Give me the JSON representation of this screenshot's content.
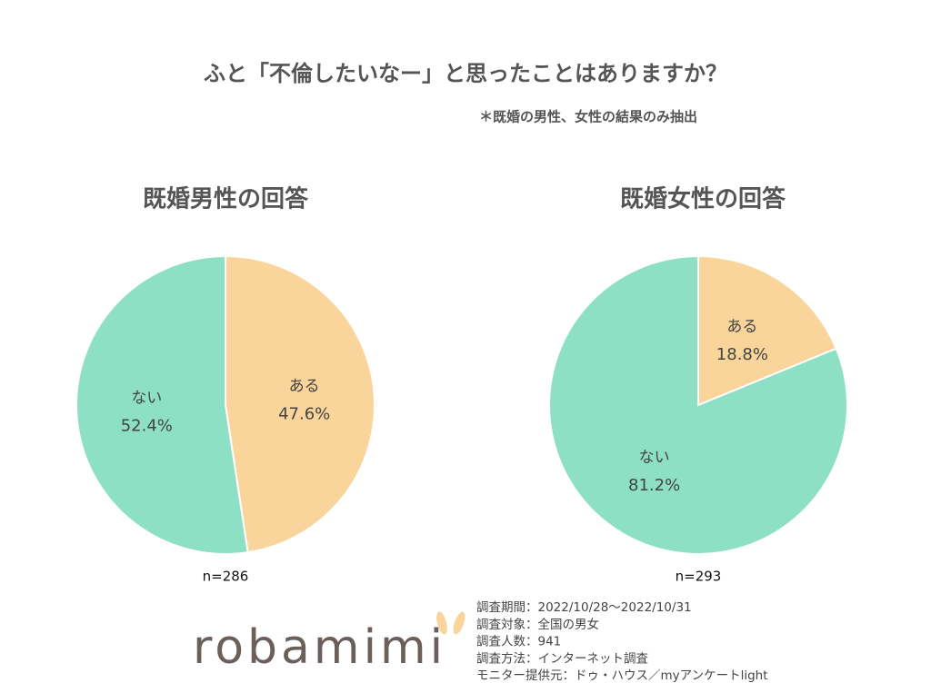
{
  "title": "ふと「不倫したいなー」と思ったことはありますか？",
  "note": "＊既婚の男性、女性の結果のみ抽出",
  "chart_data": [
    {
      "type": "pie",
      "title": "既婚男性の回答",
      "categories": [
        "ある",
        "ない"
      ],
      "values": [
        47.6,
        52.4
      ],
      "value_labels": [
        "47.6%",
        "52.4%"
      ],
      "colors": [
        "#f9d49b",
        "#8ee0c4"
      ],
      "footnote": "n=286"
    },
    {
      "type": "pie",
      "title": "既婚女性の回答",
      "categories": [
        "ある",
        "ない"
      ],
      "values": [
        18.8,
        81.2
      ],
      "value_labels": [
        "18.8%",
        "81.2%"
      ],
      "colors": [
        "#f9d49b",
        "#8ee0c4"
      ],
      "footnote": "n=293"
    }
  ],
  "logo": "robamimi",
  "survey": [
    "調査期間：2022/10/28～2022/10/31",
    "調査対象：全国の男女",
    "調査人数：941",
    "調査方法：インターネット調査",
    "モニター提供元：ドゥ・ハウス／myアンケートlight"
  ]
}
